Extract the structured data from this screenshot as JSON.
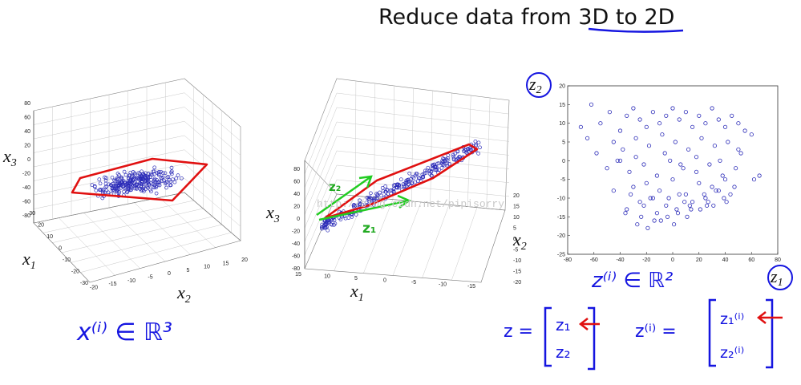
{
  "title": {
    "prefix": "Reduce data from ",
    "highlight": "3D to 2D"
  },
  "plot3d_left": {
    "x1_label": "x",
    "x1_sub": "1",
    "x2_label": "x",
    "x2_sub": "2",
    "x3_label": "x",
    "x3_sub": "3",
    "z_ticks": [
      "80",
      "60",
      "40",
      "20",
      "0",
      "-20",
      "-40",
      "-60",
      "-80"
    ],
    "x1_ticks": [
      "30",
      "20",
      "10",
      "0",
      "-10",
      "-20",
      "-30"
    ],
    "x2_ticks": [
      "20",
      "15",
      "10",
      "5",
      "0",
      "-5",
      "-10",
      "-15",
      "-20"
    ]
  },
  "plot3d_mid": {
    "x1_label": "x",
    "x1_sub": "1",
    "x2_label": "x",
    "x2_sub": "2",
    "x3_label": "x",
    "x3_sub": "3",
    "z_ticks": [
      "80",
      "60",
      "40",
      "20",
      "0",
      "-20",
      "-40",
      "-60",
      "-80"
    ],
    "x1_ticks": [
      "15",
      "10",
      "5",
      "0",
      "-5",
      "-10",
      "-15"
    ],
    "x2_ticks": [
      "20",
      "15",
      "10",
      "5",
      "0",
      "-5",
      "-10",
      "-15",
      "-20"
    ],
    "z1_annot": "z₁",
    "z2_annot": "z₂",
    "watermark": "http://blog.csdn.net/pipisorry"
  },
  "plot2d": {
    "y_label": "z",
    "y_sub": "2",
    "x_label": "z",
    "x_sub": "1",
    "x_ticks": [
      "-80",
      "-60",
      "-40",
      "-20",
      "0",
      "20",
      "40",
      "60",
      "80"
    ],
    "y_ticks": [
      "20",
      "15",
      "10",
      "5",
      "0",
      "-5",
      "-10",
      "-15",
      "-20",
      "-25"
    ]
  },
  "annotations": {
    "x_in_R3": "x⁽ⁱ⁾ ∈ ℝ³",
    "z_in_R2": "z⁽ⁱ⁾ ∈ ℝ²",
    "z_vec_lhs": "z =",
    "z_vec_top": "z₁",
    "z_vec_bottom": "z₂",
    "zi_vec_lhs": "z⁽ⁱ⁾ =",
    "zi_vec_top": "z₁⁽ⁱ⁾",
    "zi_vec_bottom": "z₂⁽ⁱ⁾"
  },
  "colors": {
    "points": "#2b2bb8",
    "red": "#e01010",
    "green": "#22cc22",
    "blue_ink": "#1515e0"
  },
  "chart_data": [
    {
      "type": "scatter",
      "title": "",
      "dimensions": 3,
      "xlabel": "x1",
      "ylabel": "x2",
      "zlabel": "x3",
      "xlim": [
        -30,
        30
      ],
      "ylim": [
        -20,
        20
      ],
      "zlim": [
        -80,
        80
      ],
      "grid": true,
      "note": "points lie near a plane; outlined with red polygon"
    },
    {
      "type": "scatter",
      "title": "",
      "dimensions": 3,
      "xlabel": "x1",
      "ylabel": "x2",
      "zlabel": "x3",
      "xlim": [
        -15,
        15
      ],
      "ylim": [
        -20,
        20
      ],
      "zlim": [
        -80,
        80
      ],
      "grid": true,
      "note": "same cloud viewed edge-on; green arrows z1, z2"
    },
    {
      "type": "scatter",
      "title": "",
      "xlabel": "z1",
      "ylabel": "z2",
      "xlim": [
        -80,
        80
      ],
      "ylim": [
        -25,
        20
      ],
      "grid": false,
      "x": [
        -55,
        -62,
        -48,
        -40,
        -35,
        -30,
        -25,
        -20,
        -15,
        -10,
        -5,
        0,
        5,
        10,
        15,
        20,
        25,
        30,
        35,
        40,
        45,
        50,
        55,
        60,
        -58,
        -45,
        -38,
        -28,
        -18,
        -8,
        2,
        12,
        22,
        32,
        42,
        52,
        -50,
        -42,
        -33,
        -22,
        -12,
        -2,
        8,
        18,
        28,
        38,
        48,
        -30,
        -20,
        -10,
        0,
        10,
        20,
        30,
        40,
        -25,
        -15,
        -5,
        5,
        15,
        25,
        35,
        -35,
        -22,
        -12,
        3,
        13,
        27,
        44,
        -40,
        -28,
        -6,
        6,
        18,
        36,
        50,
        62,
        -70,
        -65,
        66,
        -45,
        -32,
        -17,
        -3,
        9,
        24,
        33,
        47,
        -36,
        -24,
        -14,
        -4,
        4,
        14,
        26,
        39,
        -27,
        -19,
        -9,
        1,
        11,
        21,
        31,
        41
      ],
      "y": [
        10,
        15,
        13,
        8,
        12,
        14,
        11,
        9,
        13,
        10,
        12,
        14,
        11,
        13,
        9,
        12,
        10,
        14,
        11,
        9,
        12,
        10,
        8,
        7,
        2,
        5,
        3,
        6,
        4,
        7,
        5,
        3,
        6,
        4,
        5,
        2,
        -2,
        0,
        -3,
        -1,
        -4,
        0,
        -2,
        -3,
        -1,
        -4,
        -2,
        -7,
        -6,
        -8,
        -5,
        -9,
        -6,
        -7,
        -5,
        -11,
        -10,
        -12,
        -9,
        -11,
        -10,
        -8,
        -13,
        -12,
        -14,
        -13,
        -12,
        -11,
        -9,
        0,
        1,
        2,
        -1,
        1,
        0,
        3,
        -5,
        9,
        6,
        -4,
        -8,
        -9,
        -10,
        -10,
        -11,
        -9,
        -8,
        -7,
        -14,
        -15,
        -16,
        -15,
        -14,
        -13,
        -12,
        -10,
        -17,
        -18,
        -16,
        -17,
        -15,
        -13,
        -12,
        -11
      ]
    }
  ]
}
